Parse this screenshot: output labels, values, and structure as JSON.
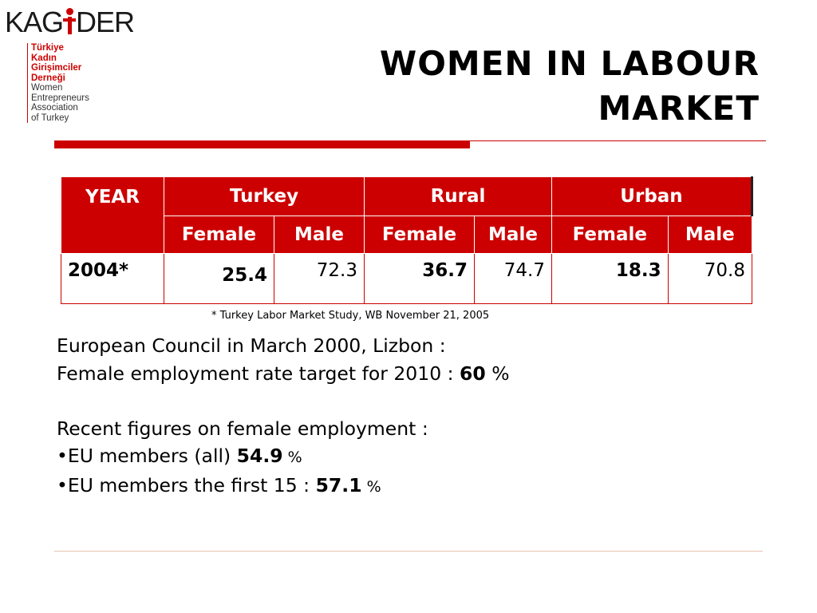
{
  "logo": {
    "word_a": "KAG",
    "word_b": "DER",
    "lines_tr": [
      "Türkiye",
      "Kadın",
      "Girişimciler",
      "Derneği"
    ],
    "lines_en": [
      "Women",
      "Entrepreneurs",
      "Association",
      "of Turkey"
    ]
  },
  "title": {
    "line1": "WOMEN IN LABOUR",
    "line2": "MARKET"
  },
  "table": {
    "header": {
      "year": "YEAR",
      "turkey": "Turkey",
      "rural": "Rural",
      "urban": "Urban"
    },
    "sub": [
      "Female",
      "Male",
      "Female",
      "Male",
      "Female",
      "Male"
    ],
    "row": {
      "year": "2004*",
      "turkey_female": "25.4",
      "turkey_male": "72.3",
      "rural_female": "36.7",
      "rural_male": "74.7",
      "urban_female": "18.3",
      "urban_male": "70.8"
    }
  },
  "footnote": "*  Turkey Labor Market Study, WB November 21, 2005",
  "body": {
    "line1": "European Council in March  2000, Lizbon :",
    "line2_prefix": "Female employment rate target for 2010 : ",
    "line2_value": "60",
    "line2_suffix": " %",
    "line3": "Recent figures on female employment :",
    "line4_prefix": "•EU members (all) ",
    "line4_value": "54.9",
    "line4_suffix": " %",
    "line5_prefix": "•EU members the first 15 : ",
    "line5_value": "57.1",
    "line5_suffix": " %"
  },
  "colors": {
    "accent": "#cc0000"
  }
}
